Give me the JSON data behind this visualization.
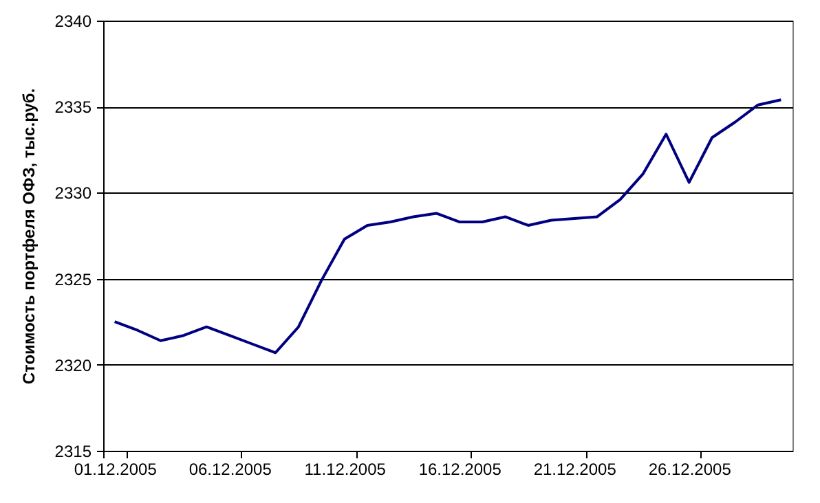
{
  "chart_data": {
    "type": "line",
    "ylabel": "Стоимость портфеля ОФЗ, тыс.руб.",
    "categories": [
      "01.12.2005",
      null,
      null,
      null,
      null,
      "06.12.2005",
      null,
      null,
      null,
      null,
      "11.12.2005",
      null,
      null,
      null,
      null,
      "16.12.2005",
      null,
      null,
      null,
      null,
      "21.12.2005",
      null,
      null,
      null,
      null,
      "26.12.2005",
      null,
      null,
      null,
      null
    ],
    "series": [
      {
        "color": "#000080",
        "values": [
          2322.5,
          2322.0,
          2321.4,
          2321.7,
          2322.2,
          2321.7,
          2321.2,
          2320.7,
          2322.2,
          2324.9,
          2327.3,
          2328.1,
          2328.3,
          2328.6,
          2328.8,
          2328.3,
          2328.3,
          2328.6,
          2328.1,
          2328.4,
          2328.5,
          2328.6,
          2329.6,
          2331.1,
          2333.4,
          2330.6,
          2333.2,
          2334.1,
          2335.1,
          2335.4
        ]
      }
    ],
    "ylim": [
      2315,
      2340
    ],
    "yticks": [
      2315,
      2320,
      2325,
      2330,
      2335,
      2340
    ],
    "grid": "y",
    "marker": "none",
    "line_style": "solid"
  }
}
